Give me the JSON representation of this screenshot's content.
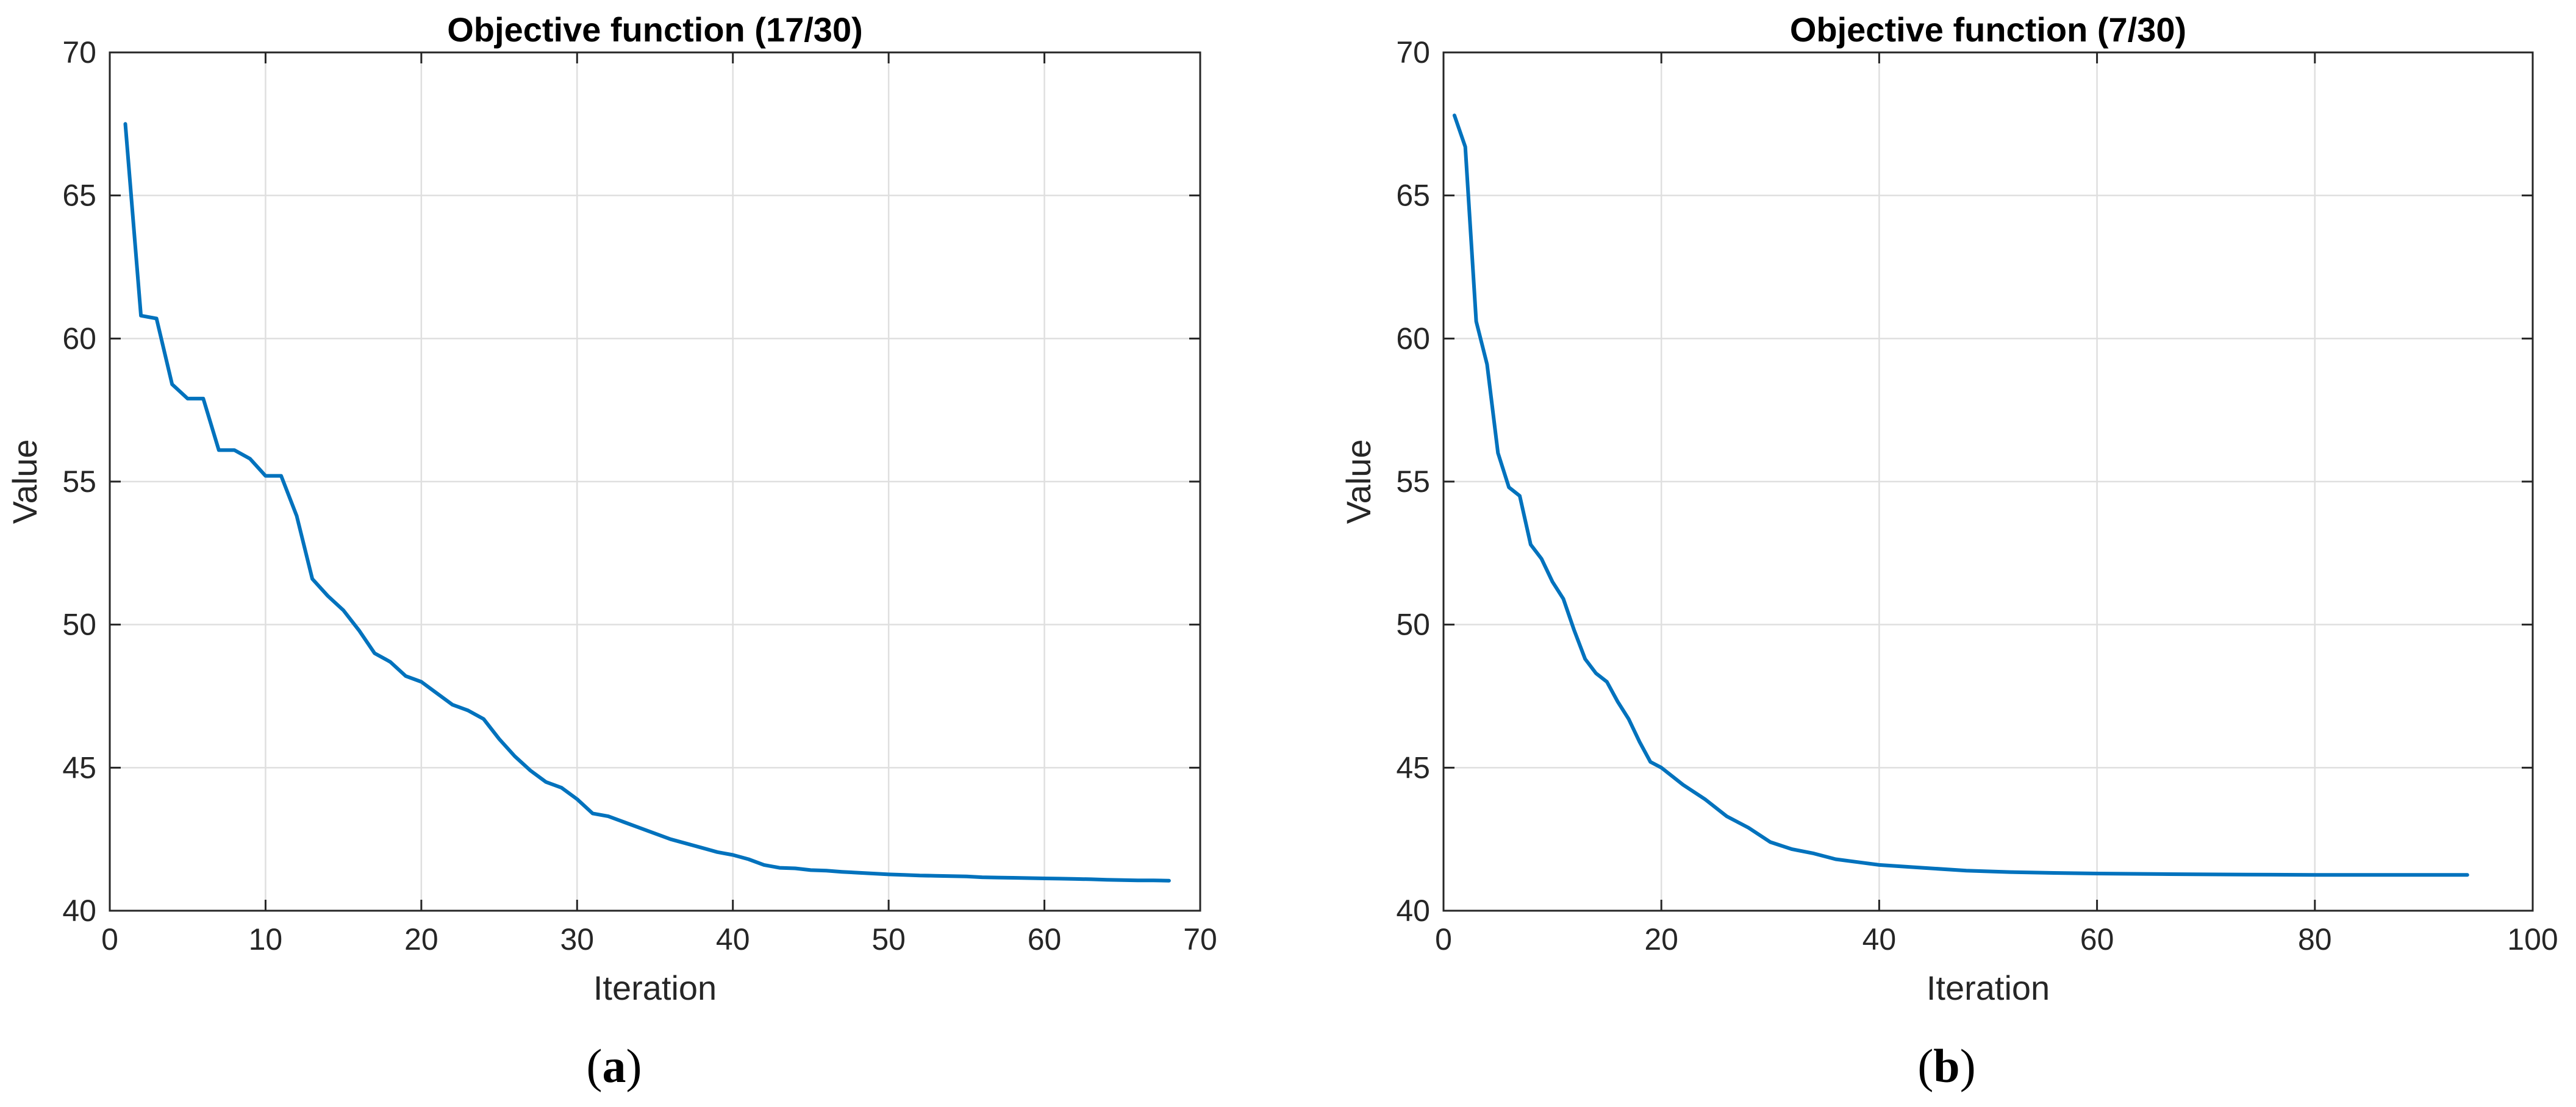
{
  "chart_data": [
    {
      "type": "line",
      "title": "Objective function (17/30)",
      "xlabel": "Iteration",
      "ylabel": "Value",
      "xlim": [
        0,
        70
      ],
      "ylim": [
        40,
        70
      ],
      "xticks": [
        "0",
        "10",
        "20",
        "30",
        "40",
        "50",
        "60",
        "70"
      ],
      "yticks": [
        "40",
        "45",
        "50",
        "55",
        "60",
        "65",
        "70"
      ],
      "grid": true,
      "caption": {
        "open": "(",
        "letter": "a",
        "close": ")"
      },
      "color": "#0072BD",
      "x": [
        1,
        2,
        3,
        4,
        5,
        6,
        7,
        8,
        9,
        10,
        11,
        12,
        13,
        14,
        15,
        16,
        17,
        18,
        19,
        20,
        21,
        22,
        23,
        24,
        25,
        26,
        27,
        28,
        29,
        30,
        31,
        32,
        33,
        34,
        35,
        36,
        37,
        38,
        39,
        40,
        41,
        42,
        43,
        44,
        45,
        46,
        47,
        48,
        49,
        50,
        51,
        52,
        53,
        54,
        55,
        56,
        57,
        58,
        59,
        60,
        61,
        62,
        63,
        64,
        65,
        66,
        67,
        68
      ],
      "y": [
        67.5,
        60.8,
        60.7,
        58.4,
        57.9,
        57.9,
        56.1,
        56.1,
        55.8,
        55.2,
        55.2,
        53.8,
        51.6,
        51.0,
        50.5,
        49.8,
        49.0,
        48.7,
        48.2,
        48.0,
        47.6,
        47.2,
        47.0,
        46.7,
        46.0,
        45.4,
        44.9,
        44.5,
        44.3,
        43.9,
        43.4,
        43.3,
        43.1,
        42.9,
        42.7,
        42.5,
        42.35,
        42.2,
        42.05,
        41.95,
        41.8,
        41.6,
        41.5,
        41.48,
        41.42,
        41.4,
        41.36,
        41.33,
        41.3,
        41.27,
        41.25,
        41.23,
        41.22,
        41.21,
        41.2,
        41.17,
        41.16,
        41.15,
        41.14,
        41.13,
        41.12,
        41.11,
        41.1,
        41.08,
        41.07,
        41.06,
        41.06,
        41.05
      ]
    },
    {
      "type": "line",
      "title": "Objective function (7/30)",
      "xlabel": "Iteration",
      "ylabel": "Value",
      "xlim": [
        0,
        100
      ],
      "ylim": [
        40,
        70
      ],
      "xticks": [
        "0",
        "20",
        "40",
        "60",
        "80",
        "100"
      ],
      "yticks": [
        "40",
        "45",
        "50",
        "55",
        "60",
        "65",
        "70"
      ],
      "grid": true,
      "caption": {
        "open": "(",
        "letter": "b",
        "close": ")"
      },
      "color": "#0072BD",
      "x": [
        1,
        2,
        3,
        4,
        5,
        6,
        7,
        8,
        9,
        10,
        11,
        12,
        13,
        14,
        15,
        16,
        17,
        18,
        19,
        20,
        22,
        24,
        26,
        28,
        30,
        32,
        34,
        36,
        38,
        40,
        44,
        48,
        52,
        56,
        60,
        66,
        70,
        76,
        80,
        86,
        90,
        94
      ],
      "y": [
        67.8,
        66.7,
        60.6,
        59.1,
        56.0,
        54.8,
        54.5,
        52.8,
        52.3,
        51.5,
        50.9,
        49.8,
        48.8,
        48.3,
        48.0,
        47.3,
        46.7,
        45.9,
        45.2,
        45.0,
        44.4,
        43.9,
        43.3,
        42.9,
        42.4,
        42.15,
        42.0,
        41.8,
        41.7,
        41.6,
        41.5,
        41.4,
        41.35,
        41.32,
        41.3,
        41.28,
        41.27,
        41.26,
        41.25,
        41.25,
        41.25,
        41.25
      ]
    }
  ]
}
